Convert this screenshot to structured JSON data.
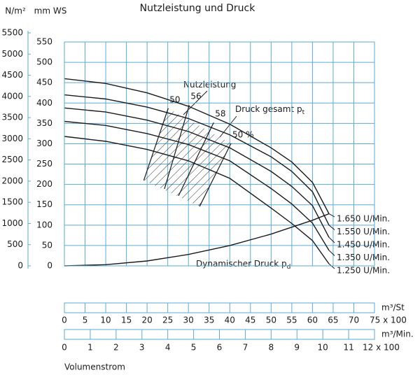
{
  "chart_data": {
    "type": "line",
    "title": "Nutzleistung und Druck",
    "y_label": "mm WS",
    "y2_label": "N/m²",
    "ylim": [
      0,
      550
    ],
    "yticks": [
      0,
      50,
      100,
      150,
      200,
      250,
      300,
      350,
      400,
      450,
      500,
      550
    ],
    "y2lim": [
      0,
      5500
    ],
    "y2ticks": [
      0,
      500,
      1000,
      1500,
      2000,
      2500,
      3000,
      3500,
      4000,
      4500,
      5000,
      5500
    ],
    "x_label": "m³/St",
    "xlim": [
      0,
      75
    ],
    "xticks": [
      0,
      5,
      10,
      15,
      20,
      25,
      30,
      35,
      40,
      45,
      50,
      55,
      60,
      65,
      70,
      {
        "value": 75,
        "label": "75 x 100"
      }
    ],
    "x2_label": "m³/Min.",
    "x2lim": [
      0,
      12
    ],
    "x2ticks": [
      0,
      1,
      2,
      3,
      4,
      5,
      6,
      7,
      8,
      9,
      10,
      11,
      {
        "value": 12,
        "label": "12 x 100"
      }
    ],
    "x_axis_title": "Volumenstrom",
    "grid": true,
    "grid_color": "#5aaad8",
    "series": [
      {
        "name": "1.650 U/Min.",
        "color": "#1a1a1a",
        "x": [
          0,
          10,
          20,
          30,
          40,
          50,
          55,
          60,
          64
        ],
        "values": [
          460,
          448,
          425,
          392,
          348,
          290,
          255,
          205,
          128
        ]
      },
      {
        "name": "1.550 U/Min.",
        "color": "#1a1a1a",
        "x": [
          0,
          10,
          20,
          30,
          40,
          50,
          55,
          60,
          64
        ],
        "values": [
          420,
          410,
          390,
          362,
          322,
          268,
          232,
          182,
          100
        ]
      },
      {
        "name": "1.450 U/Min.",
        "color": "#1a1a1a",
        "x": [
          0,
          10,
          20,
          30,
          40,
          50,
          55,
          60,
          64
        ],
        "values": [
          388,
          378,
          358,
          330,
          290,
          232,
          195,
          148,
          70
        ]
      },
      {
        "name": "1.350 U/Min.",
        "color": "#1a1a1a",
        "x": [
          0,
          10,
          20,
          30,
          40,
          50,
          55,
          60,
          64
        ],
        "values": [
          355,
          345,
          325,
          298,
          258,
          190,
          152,
          105,
          38
        ]
      },
      {
        "name": "1.250 U/Min.",
        "color": "#1a1a1a",
        "x": [
          0,
          10,
          20,
          30,
          40,
          50,
          55,
          60,
          64
        ],
        "values": [
          318,
          306,
          286,
          258,
          215,
          142,
          104,
          62,
          5
        ]
      }
    ],
    "dynamic": {
      "name": {
        "text": "Dynamischer Druck p",
        "sub": "d"
      },
      "color": "#1a1a1a",
      "x": [
        0,
        10,
        20,
        30,
        40,
        50,
        60,
        64
      ],
      "values": [
        0,
        3,
        12,
        28,
        50,
        78,
        112,
        128
      ]
    },
    "efficiency": [
      {
        "label": "50",
        "x": [
          19.2,
          25.1
        ],
        "values": [
          210,
          387
        ]
      },
      {
        "label": "56",
        "x": [
          24.2,
          30.2
        ],
        "values": [
          189,
          395
        ]
      },
      {
        "label": "58",
        "x": [
          27.6,
          36.1
        ],
        "values": [
          172,
          352
        ]
      },
      {
        "label": "50 %",
        "x": [
          32.7,
          40.3
        ],
        "values": [
          146,
          301
        ]
      }
    ],
    "annotations": [
      {
        "text": "Nutzleistung"
      },
      {
        "text": "Druck gesamt p",
        "sub": "t"
      }
    ]
  }
}
